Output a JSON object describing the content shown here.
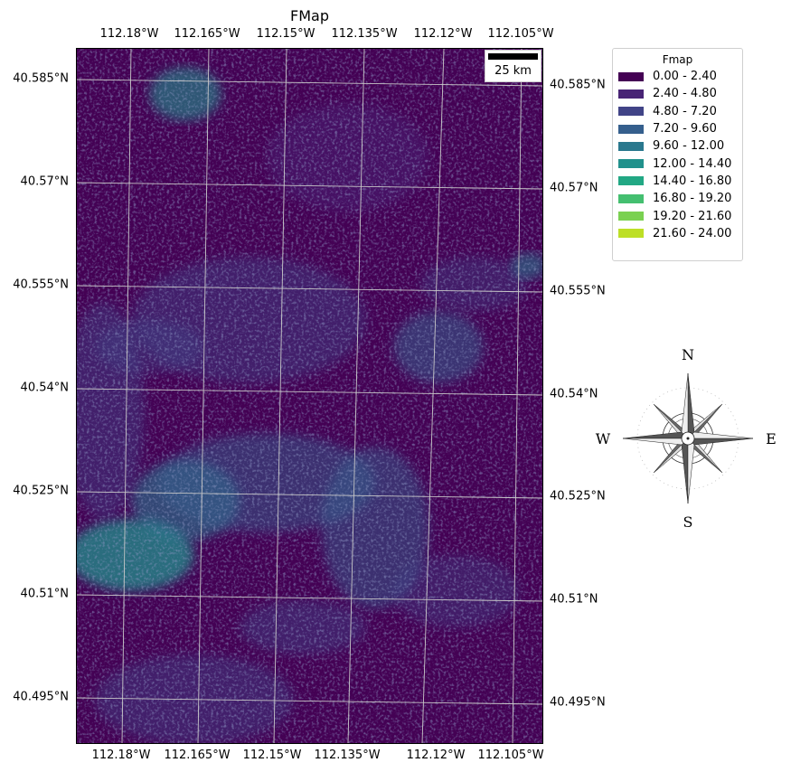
{
  "title": "FMap",
  "scalebar": {
    "label": "25 km"
  },
  "axes": {
    "top_ticks": [
      "112.18°W",
      "112.165°W",
      "112.15°W",
      "112.135°W",
      "112.12°W",
      "112.105°W"
    ],
    "bottom_ticks": [
      "112.18°W",
      "112.165°W",
      "112.15°W",
      "112.135°W",
      "112.12°W",
      "112.105°W"
    ],
    "left_ticks": [
      "40.585°N",
      "40.57°N",
      "40.555°N",
      "40.54°N",
      "40.525°N",
      "40.51°N",
      "40.495°N"
    ],
    "right_ticks": [
      "40.585°N",
      "40.57°N",
      "40.555°N",
      "40.54°N",
      "40.525°N",
      "40.51°N",
      "40.495°N"
    ]
  },
  "legend": {
    "title": "Fmap",
    "items": [
      {
        "label": "0.00 - 2.40",
        "color": "#440154"
      },
      {
        "label": "2.40 - 4.80",
        "color": "#482475"
      },
      {
        "label": "4.80 - 7.20",
        "color": "#414487"
      },
      {
        "label": "7.20 - 9.60",
        "color": "#355f8d"
      },
      {
        "label": "9.60 - 12.00",
        "color": "#2a788e"
      },
      {
        "label": "12.00 - 14.40",
        "color": "#21918c"
      },
      {
        "label": "14.40 - 16.80",
        "color": "#22a884"
      },
      {
        "label": "16.80 - 19.20",
        "color": "#44bf70"
      },
      {
        "label": "19.20 - 21.60",
        "color": "#7ad151"
      },
      {
        "label": "21.60 - 24.00",
        "color": "#bddf26"
      }
    ]
  },
  "compass": {
    "north": "N",
    "south": "S",
    "east": "E",
    "west": "W"
  }
}
